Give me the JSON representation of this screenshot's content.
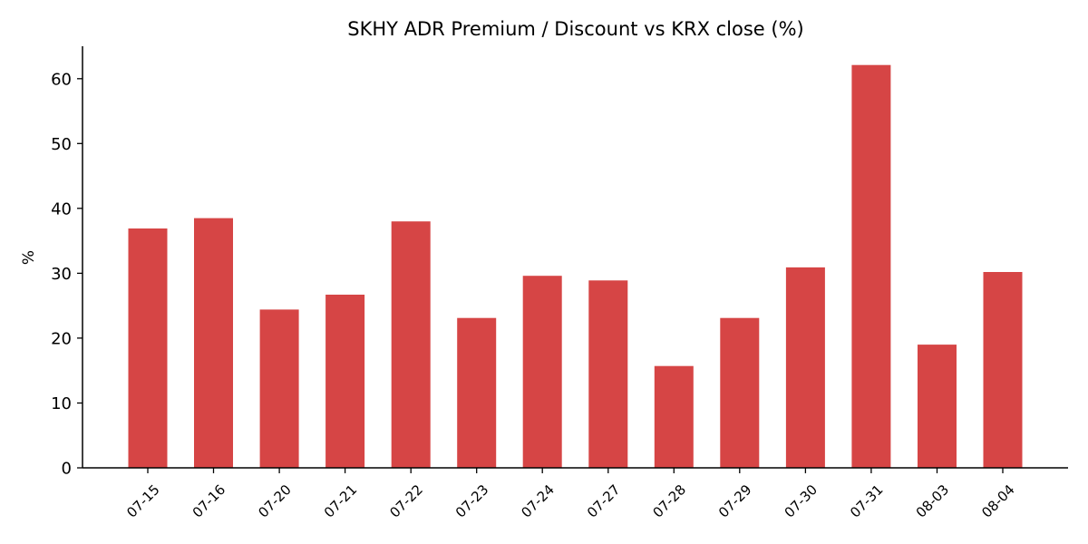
{
  "chart_data": {
    "type": "bar",
    "title": "SKHY ADR Premium / Discount vs KRX close (%)",
    "xlabel": "",
    "ylabel": "%",
    "ylim": [
      0,
      65
    ],
    "yticks": [
      0,
      10,
      20,
      30,
      40,
      50,
      60
    ],
    "categories": [
      "07-15",
      "07-16",
      "07-20",
      "07-21",
      "07-22",
      "07-23",
      "07-24",
      "07-27",
      "07-28",
      "07-29",
      "07-30",
      "07-31",
      "08-03",
      "08-04"
    ],
    "values": [
      36.9,
      38.5,
      24.4,
      26.7,
      38.0,
      23.1,
      29.6,
      28.9,
      15.7,
      23.1,
      30.9,
      62.1,
      19.0,
      30.2
    ],
    "bar_color": "#d64545",
    "grid": false,
    "legend": "none"
  }
}
